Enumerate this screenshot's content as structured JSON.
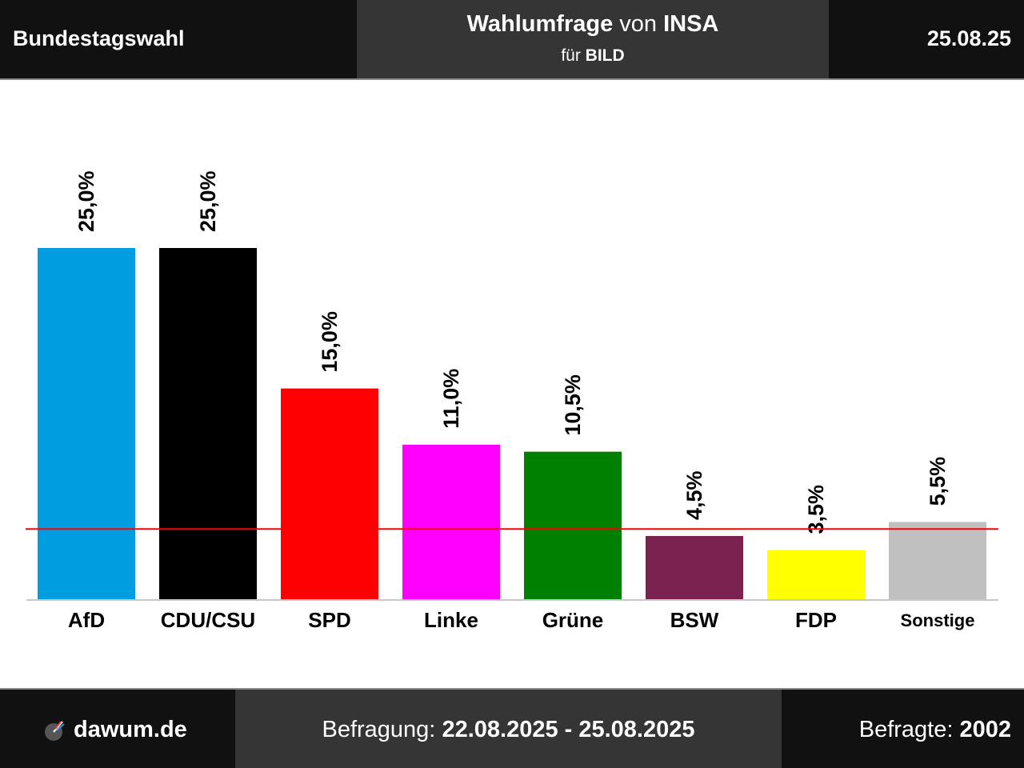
{
  "header": {
    "left": "Bundestagswahl",
    "title_main": "Wahlumfrage",
    "title_connector": "von",
    "title_institute": "INSA",
    "subtitle_prefix": "für",
    "subtitle_client": "BILD",
    "date": "25.08.25"
  },
  "footer": {
    "logo_text": "dawum.de",
    "period_label": "Befragung:",
    "period_value": "22.08.2025 - 25.08.2025",
    "respondents_label": "Befragte:",
    "respondents_value": "2002"
  },
  "chart_data": {
    "type": "bar",
    "categories": [
      "AfD",
      "CDU/CSU",
      "SPD",
      "Linke",
      "Grüne",
      "BSW",
      "FDP",
      "Sonstige"
    ],
    "values": [
      25.0,
      25.0,
      15.0,
      11.0,
      10.5,
      4.5,
      3.5,
      5.5
    ],
    "value_labels": [
      "25,0%",
      "25,0%",
      "15,0%",
      "11,0%",
      "10,5%",
      "4,5%",
      "3,5%",
      "5,5%"
    ],
    "colors": [
      "#009ee0",
      "#000000",
      "#ff0000",
      "#ff00ff",
      "#008000",
      "#7a2350",
      "#ffff00",
      "#c0c0c0"
    ],
    "threshold": 5.0,
    "threshold_color": "#ff0000",
    "ylim": [
      0,
      25.0
    ]
  }
}
